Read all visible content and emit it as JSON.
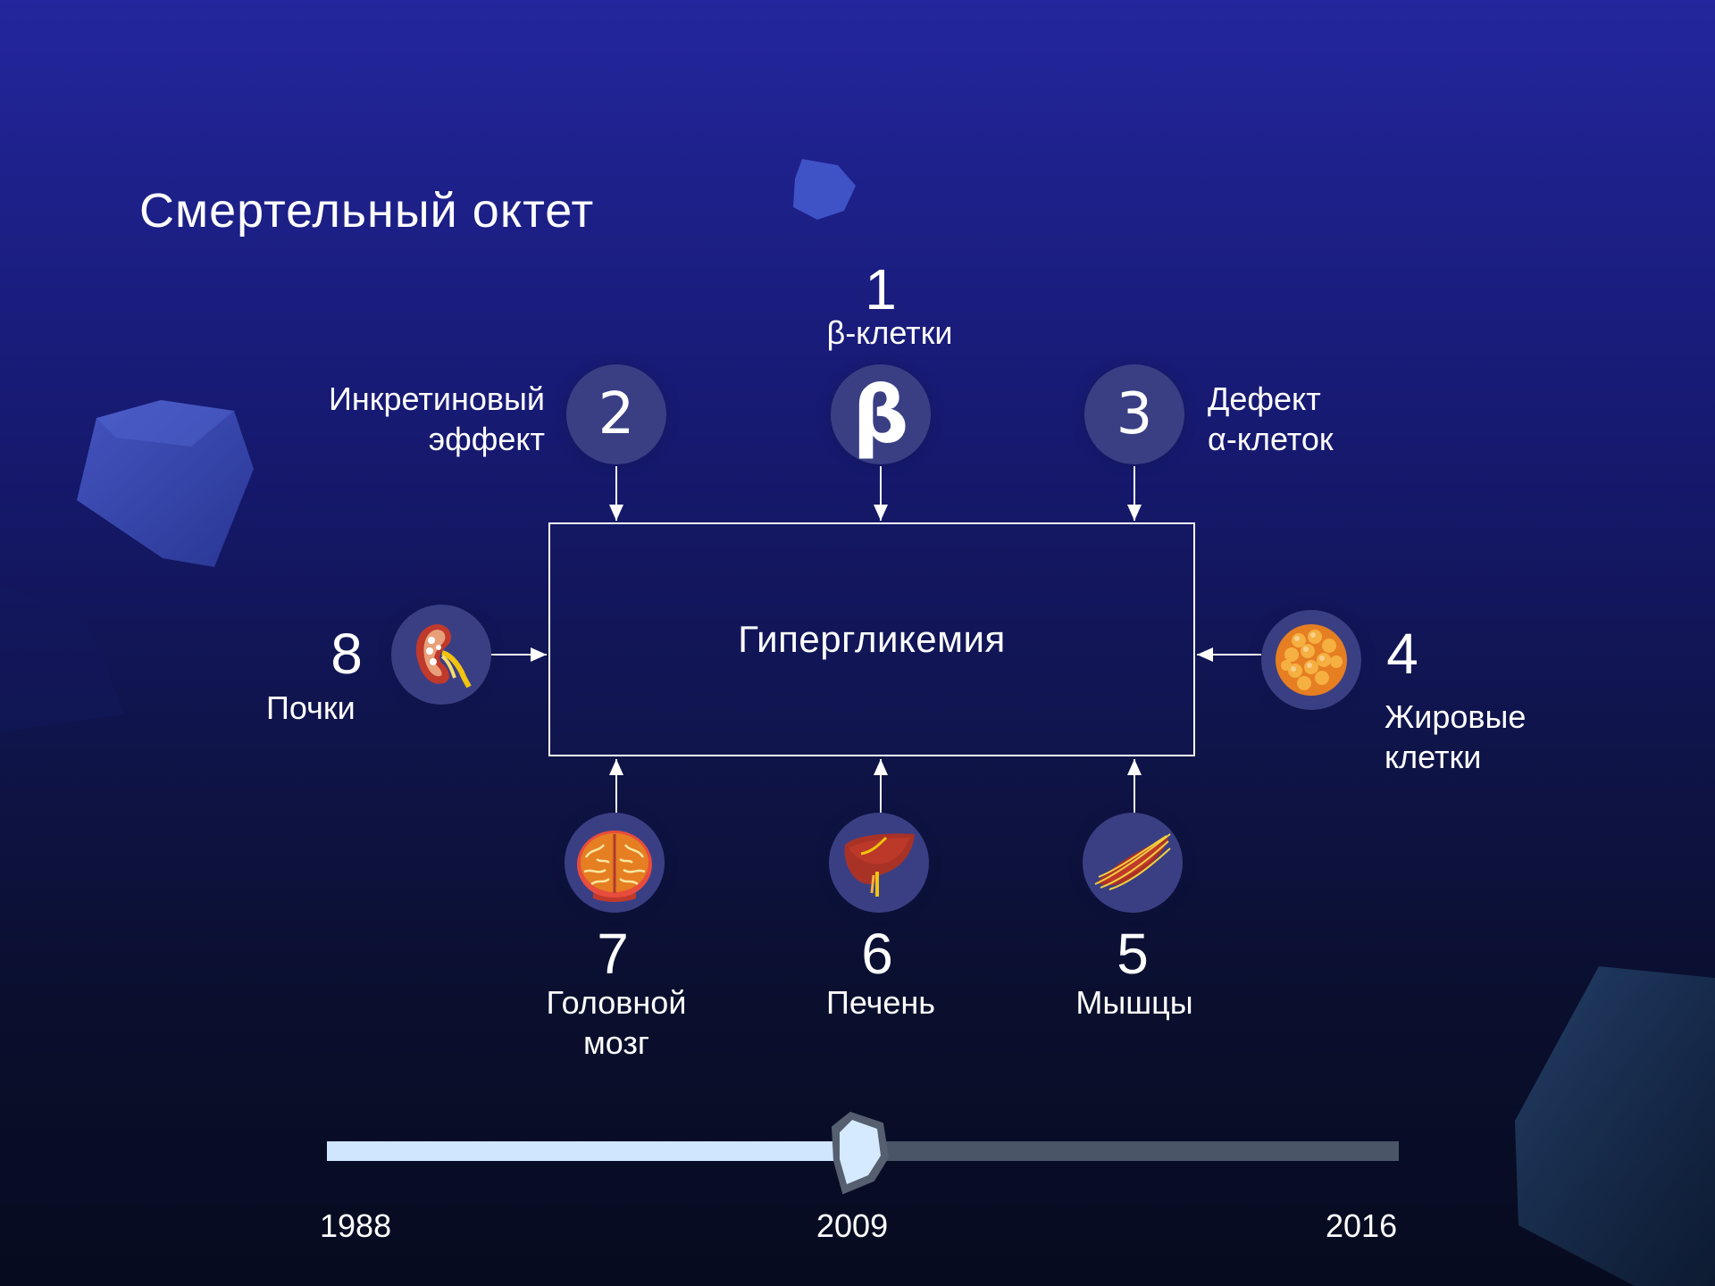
{
  "title": "Смертельный октет",
  "center_label": "Гипергликемия",
  "factors": {
    "f1": {
      "number": "1",
      "label": "β-клетки",
      "icon": "beta-symbol-icon",
      "glyph": "β"
    },
    "f2": {
      "number": "2",
      "label_line1": "Инкретиновый",
      "label_line2": "эффект"
    },
    "f3": {
      "number": "3",
      "label_line1": "Дефект",
      "label_line2": "α-клеток"
    },
    "f4": {
      "number": "4",
      "label_line1": "Жировые",
      "label_line2": "клетки",
      "icon": "fat-cell-icon"
    },
    "f5": {
      "number": "5",
      "label": "Мышцы",
      "icon": "muscle-icon"
    },
    "f6": {
      "number": "6",
      "label": "Печень",
      "icon": "liver-icon"
    },
    "f7": {
      "number": "7",
      "label_line1": "Головной",
      "label_line2": "мозг",
      "icon": "brain-icon"
    },
    "f8": {
      "number": "8",
      "label": "Почки",
      "icon": "kidney-icon"
    }
  },
  "timeline": {
    "start": "1988",
    "current": "2009",
    "end": "2016",
    "progress": 0.5
  },
  "colors": {
    "circle": "#3a3f84",
    "timeline_filled": "#cfe6ff",
    "timeline_rest": "#4a5568"
  }
}
